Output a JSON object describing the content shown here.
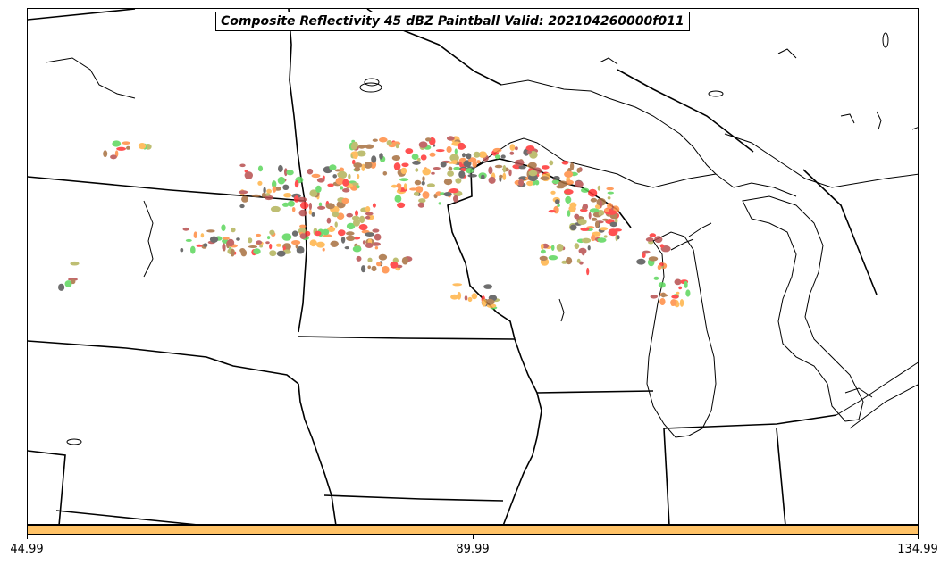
{
  "title": "Composite Reflectivity 45 dBZ Paintball Valid: 202104260000f011",
  "colorbar": {
    "color": "#ffc266",
    "ticks": [
      "44.99",
      "89.99",
      "134.99"
    ]
  },
  "paint_colors": [
    "#ff3333",
    "#b85050",
    "#ff8c42",
    "#ffb347",
    "#5cd65c",
    "#555555",
    "#b3b35a",
    "#a87040"
  ]
}
